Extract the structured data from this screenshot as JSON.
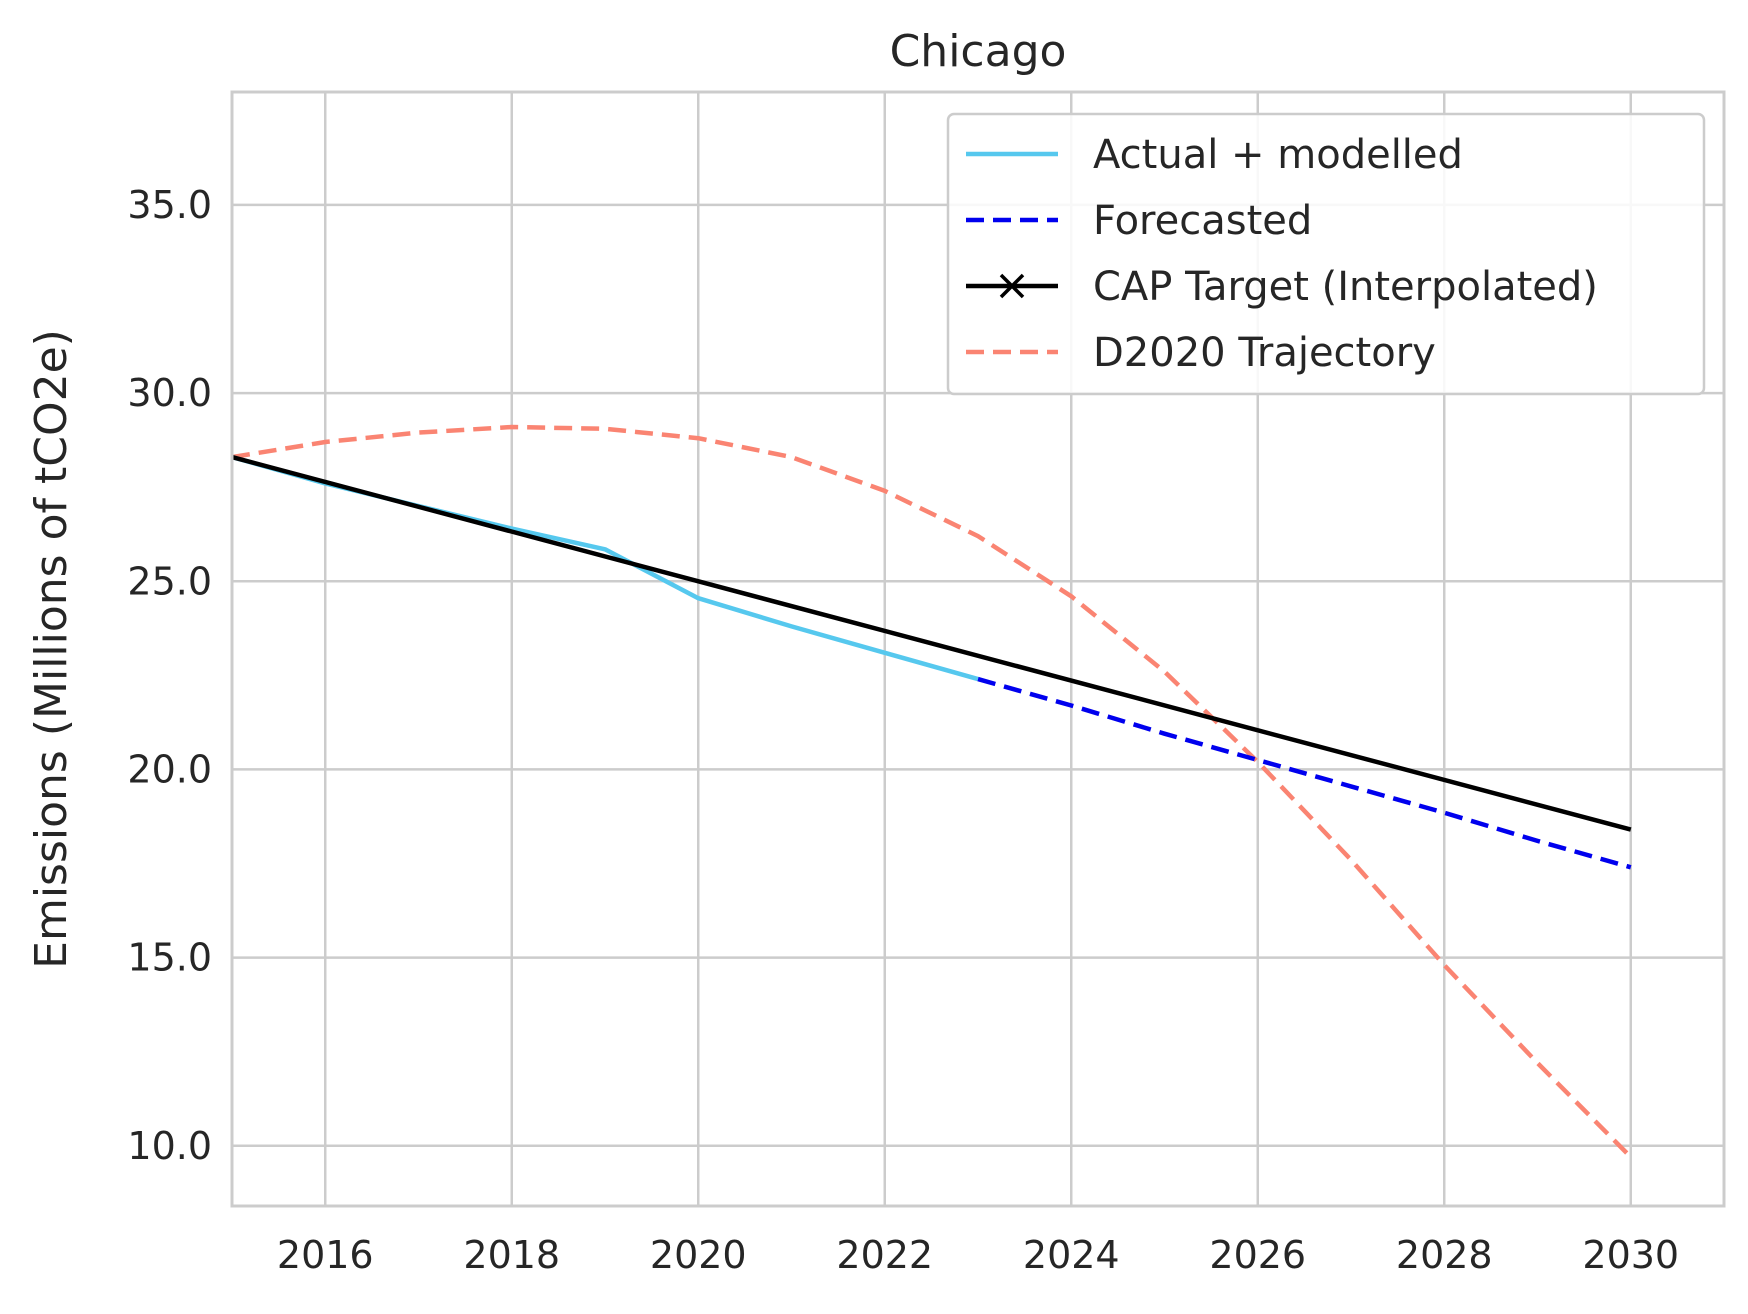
{
  "chart_data": {
    "type": "line",
    "title": "Chicago",
    "xlabel": "",
    "ylabel": "Emissions (Millions of tCO2e)",
    "xlim": [
      2015,
      2031
    ],
    "ylim": [
      8.4,
      38.0
    ],
    "xticks": [
      2016,
      2018,
      2020,
      2022,
      2024,
      2026,
      2028,
      2030
    ],
    "xtick_labels": [
      "2016",
      "2018",
      "2020",
      "2022",
      "2024",
      "2026",
      "2028",
      "2030"
    ],
    "yticks": [
      10,
      15,
      20,
      25,
      30,
      35
    ],
    "ytick_labels": [
      "10.0",
      "15.0",
      "20.0",
      "25.0",
      "30.0",
      "35.0"
    ],
    "grid": true,
    "legend_position": "top-right",
    "series": [
      {
        "name": "Actual + modelled",
        "color": "#56c8ee",
        "style": "solid",
        "x": [
          2015,
          2016,
          2017,
          2018,
          2019,
          2020,
          2021,
          2022,
          2023
        ],
        "y": [
          28.3,
          27.6,
          27.0,
          26.4,
          25.85,
          24.55,
          23.8,
          23.1,
          22.4
        ]
      },
      {
        "name": "Forecasted",
        "color": "#0000ee",
        "style": "dashed",
        "x": [
          2023,
          2024,
          2025,
          2026,
          2027,
          2028,
          2029,
          2030
        ],
        "y": [
          22.4,
          21.7,
          20.95,
          20.25,
          19.55,
          18.85,
          18.1,
          17.4
        ]
      },
      {
        "name": "CAP Target (Interpolated)",
        "color": "#000000",
        "style": "solid-x",
        "x": [
          2015,
          2030
        ],
        "y": [
          28.3,
          18.4
        ]
      },
      {
        "name": "D2020 Trajectory",
        "color": "#fa8472",
        "style": "dashed",
        "x": [
          2015,
          2016,
          2017,
          2018,
          2019,
          2020,
          2021,
          2022,
          2023,
          2024,
          2025,
          2026,
          2027,
          2028,
          2029,
          2030
        ],
        "y": [
          28.3,
          28.7,
          28.95,
          29.1,
          29.05,
          28.8,
          28.3,
          27.4,
          26.2,
          24.6,
          22.6,
          20.2,
          17.6,
          14.8,
          12.2,
          9.7
        ]
      }
    ]
  }
}
